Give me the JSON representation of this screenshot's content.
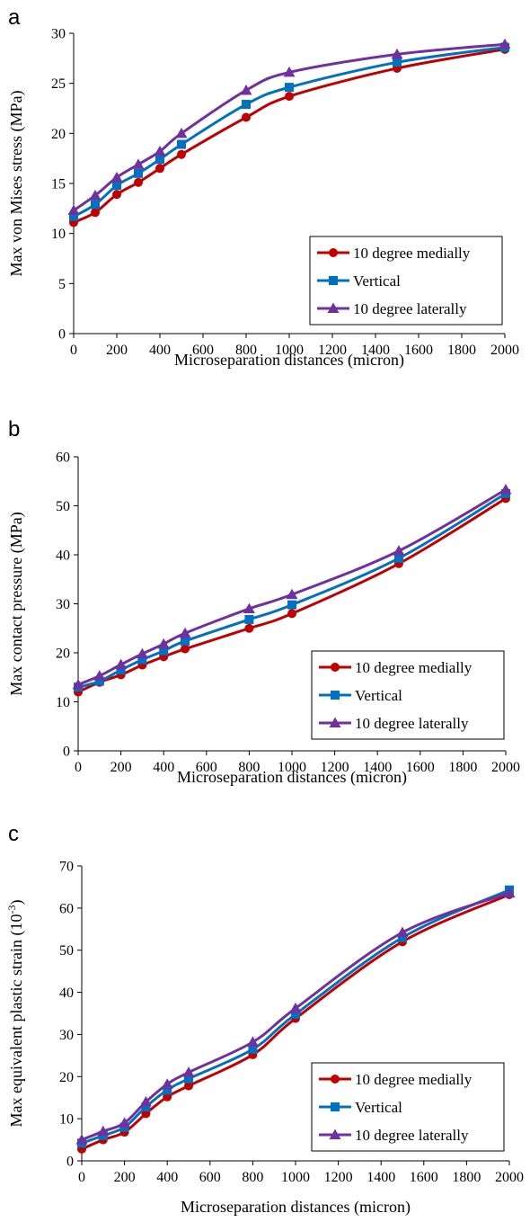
{
  "chart_data": [
    {
      "panel_label": "a",
      "type": "line",
      "title": "",
      "xlabel": "Microseparation distances (micron)",
      "ylabel": "Max von Mises stress (MPa)",
      "xlim": [
        0,
        2000
      ],
      "ylim": [
        0,
        30
      ],
      "xticks": [
        0,
        200,
        400,
        600,
        800,
        1000,
        1200,
        1400,
        1600,
        1800,
        2000
      ],
      "yticks": [
        0,
        5,
        10,
        15,
        20,
        25,
        30
      ],
      "grid": false,
      "legend_position": "bottom-right",
      "x": [
        0,
        100,
        200,
        300,
        400,
        500,
        800,
        1000,
        1500,
        2000
      ],
      "series": [
        {
          "name": "10 degree medially",
          "color": "#c00000",
          "marker": "circle",
          "values": [
            11.1,
            12.1,
            13.9,
            15.1,
            16.5,
            17.9,
            21.6,
            23.7,
            26.5,
            28.4
          ]
        },
        {
          "name": "Vertical",
          "color": "#0070c0",
          "marker": "square",
          "values": [
            11.7,
            12.9,
            14.8,
            16.0,
            17.4,
            18.9,
            22.9,
            24.6,
            27.1,
            28.6
          ]
        },
        {
          "name": "10 degree laterally",
          "color": "#7030a0",
          "marker": "triangle",
          "values": [
            12.3,
            13.8,
            15.6,
            16.9,
            18.2,
            20.0,
            24.3,
            26.1,
            27.9,
            28.9
          ]
        }
      ]
    },
    {
      "panel_label": "b",
      "type": "line",
      "title": "",
      "xlabel": "Microseparation distances (micron)",
      "ylabel": "Max contact pressure (MPa)",
      "xlim": [
        0,
        2000
      ],
      "ylim": [
        0,
        60
      ],
      "xticks": [
        0,
        200,
        400,
        600,
        800,
        1000,
        1200,
        1400,
        1600,
        1800,
        2000
      ],
      "yticks": [
        0,
        10,
        20,
        30,
        40,
        50,
        60
      ],
      "grid": false,
      "legend_position": "bottom-right",
      "x": [
        0,
        100,
        200,
        300,
        400,
        500,
        800,
        1000,
        1500,
        2000
      ],
      "series": [
        {
          "name": "10 degree medially",
          "color": "#c00000",
          "marker": "circle",
          "values": [
            12.0,
            14.0,
            15.5,
            17.5,
            19.2,
            20.8,
            25.0,
            28.0,
            38.2,
            51.5
          ]
        },
        {
          "name": "Vertical",
          "color": "#0070c0",
          "marker": "square",
          "values": [
            13.0,
            14.2,
            16.5,
            18.6,
            20.4,
            22.4,
            26.8,
            29.8,
            39.3,
            52.5
          ]
        },
        {
          "name": "10 degree laterally",
          "color": "#7030a0",
          "marker": "triangle",
          "values": [
            13.5,
            15.3,
            17.6,
            19.8,
            21.8,
            24.0,
            29.0,
            31.9,
            40.8,
            53.3
          ]
        }
      ]
    },
    {
      "panel_label": "c",
      "type": "line",
      "title": "",
      "xlabel": "Microseparation distances (micron)",
      "ylabel": "Max equivalent plastic strain (10",
      "ylabel_superscript": "-3",
      "ylabel_suffix": ")",
      "xlim": [
        0,
        2000
      ],
      "ylim": [
        0,
        70
      ],
      "xticks": [
        0,
        200,
        400,
        600,
        800,
        1000,
        1200,
        1400,
        1600,
        1800,
        2000
      ],
      "yticks": [
        0,
        10,
        20,
        30,
        40,
        50,
        60,
        70
      ],
      "grid": false,
      "legend_position": "bottom-right",
      "x": [
        0,
        100,
        200,
        300,
        400,
        500,
        800,
        1000,
        1500,
        2000
      ],
      "series": [
        {
          "name": "10 degree medially",
          "color": "#c00000",
          "marker": "circle",
          "values": [
            2.8,
            5.0,
            6.8,
            11.2,
            15.2,
            17.8,
            25.2,
            33.8,
            52.0,
            63.2
          ]
        },
        {
          "name": "Vertical",
          "color": "#0070c0",
          "marker": "square",
          "values": [
            4.2,
            6.0,
            8.0,
            12.8,
            16.8,
            19.5,
            26.5,
            34.8,
            53.0,
            64.3
          ]
        },
        {
          "name": "10 degree laterally",
          "color": "#7030a0",
          "marker": "triangle",
          "values": [
            5.0,
            7.0,
            9.0,
            14.0,
            18.2,
            21.0,
            28.2,
            36.2,
            54.2,
            63.6
          ]
        }
      ]
    }
  ]
}
